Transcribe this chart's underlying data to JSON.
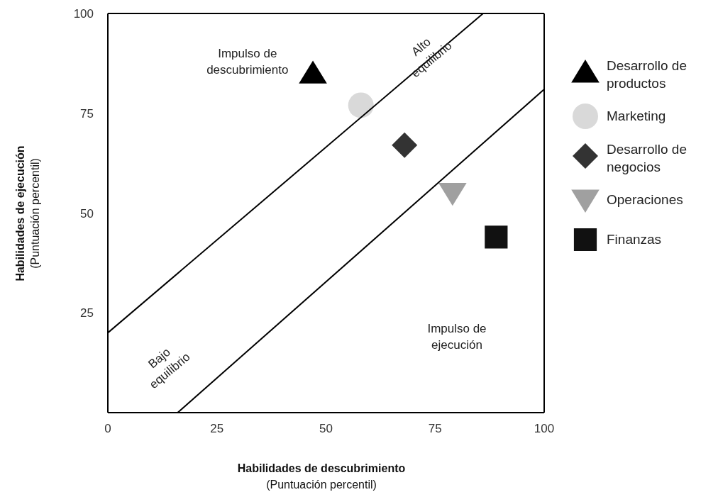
{
  "chart_data": {
    "type": "scatter",
    "xlabel": "Habilidades de descubrimiento\n(Puntuación percentil)",
    "ylabel": "Habilidades de ejecución\n(Puntuación percentil)",
    "xlim": [
      0,
      100
    ],
    "ylim": [
      0,
      100
    ],
    "xticks": [
      0,
      25,
      50,
      75,
      100
    ],
    "yticks": [
      25,
      50,
      75,
      100
    ],
    "grid": false,
    "legend": "right",
    "series": [
      {
        "name": "Desarrollo de\nproductos",
        "color": "#000000",
        "marker": "triangle",
        "x": [
          47
        ],
        "values": [
          85
        ]
      },
      {
        "name": "Marketing",
        "color": "#d9d9d9",
        "marker": "circle",
        "x": [
          58
        ],
        "values": [
          77
        ]
      },
      {
        "name": "Desarrollo de\nnegocios",
        "color": "#333333",
        "marker": "diamond",
        "x": [
          68
        ],
        "values": [
          67
        ]
      },
      {
        "name": "Operaciones",
        "color": "#a0a0a0",
        "marker": "triangle-down",
        "x": [
          79
        ],
        "values": [
          55
        ]
      },
      {
        "name": "Finanzas",
        "color": "#111111",
        "marker": "square",
        "x": [
          89
        ],
        "values": [
          44
        ]
      },
      {
        "type": "line",
        "color": "#000000",
        "marker": "none",
        "x": [
          0,
          86
        ],
        "values": [
          20,
          100
        ]
      },
      {
        "type": "line",
        "color": "#000000",
        "marker": "none",
        "x": [
          16,
          100
        ],
        "values": [
          0,
          81
        ]
      }
    ],
    "annotations": [
      "Impulso de\ndescubrimiento",
      "Alto\nequilibrio",
      "Bajo\nequilibrio",
      "Impulso de\nejecución"
    ]
  }
}
